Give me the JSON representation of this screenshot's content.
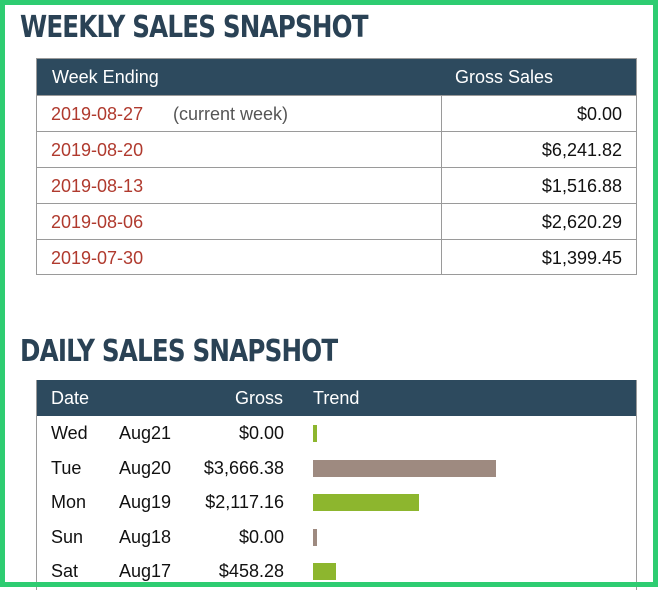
{
  "weekly": {
    "title": "WEEKLY SALES SNAPSHOT",
    "columns": {
      "week": "Week Ending",
      "gross": "Gross Sales"
    },
    "rows": [
      {
        "date": "2019-08-27",
        "note": "(current week)",
        "amount": "$0.00"
      },
      {
        "date": "2019-08-20",
        "note": "",
        "amount": "$6,241.82"
      },
      {
        "date": "2019-08-13",
        "note": "",
        "amount": "$1,516.88"
      },
      {
        "date": "2019-08-06",
        "note": "",
        "amount": "$2,620.29"
      },
      {
        "date": "2019-07-30",
        "note": "",
        "amount": "$1,399.45"
      }
    ]
  },
  "daily": {
    "title": "DAILY SALES SNAPSHOT",
    "columns": {
      "date": "Date",
      "gross": "Gross",
      "trend": "Trend"
    },
    "rows": [
      {
        "day": "Wed",
        "md": "Aug21",
        "gross": "$0.00",
        "value": 0,
        "bar_color": "#8db62e"
      },
      {
        "day": "Tue",
        "md": "Aug20",
        "gross": "$3,666.38",
        "value": 3666.38,
        "bar_color": "#9e8a80"
      },
      {
        "day": "Mon",
        "md": "Aug19",
        "gross": "$2,117.16",
        "value": 2117.16,
        "bar_color": "#8db62e"
      },
      {
        "day": "Sun",
        "md": "Aug18",
        "gross": "$0.00",
        "value": 0,
        "bar_color": "#9e8a80"
      },
      {
        "day": "Sat",
        "md": "Aug17",
        "gross": "$458.28",
        "value": 458.28,
        "bar_color": "#8db62e"
      }
    ]
  },
  "colors": {
    "frame": "#2ecc71",
    "header_bg": "#2d4a5e",
    "title_text": "#2a4255",
    "date_link": "#b03a2e",
    "bar_up": "#8db62e",
    "bar_down": "#9e8a80"
  }
}
